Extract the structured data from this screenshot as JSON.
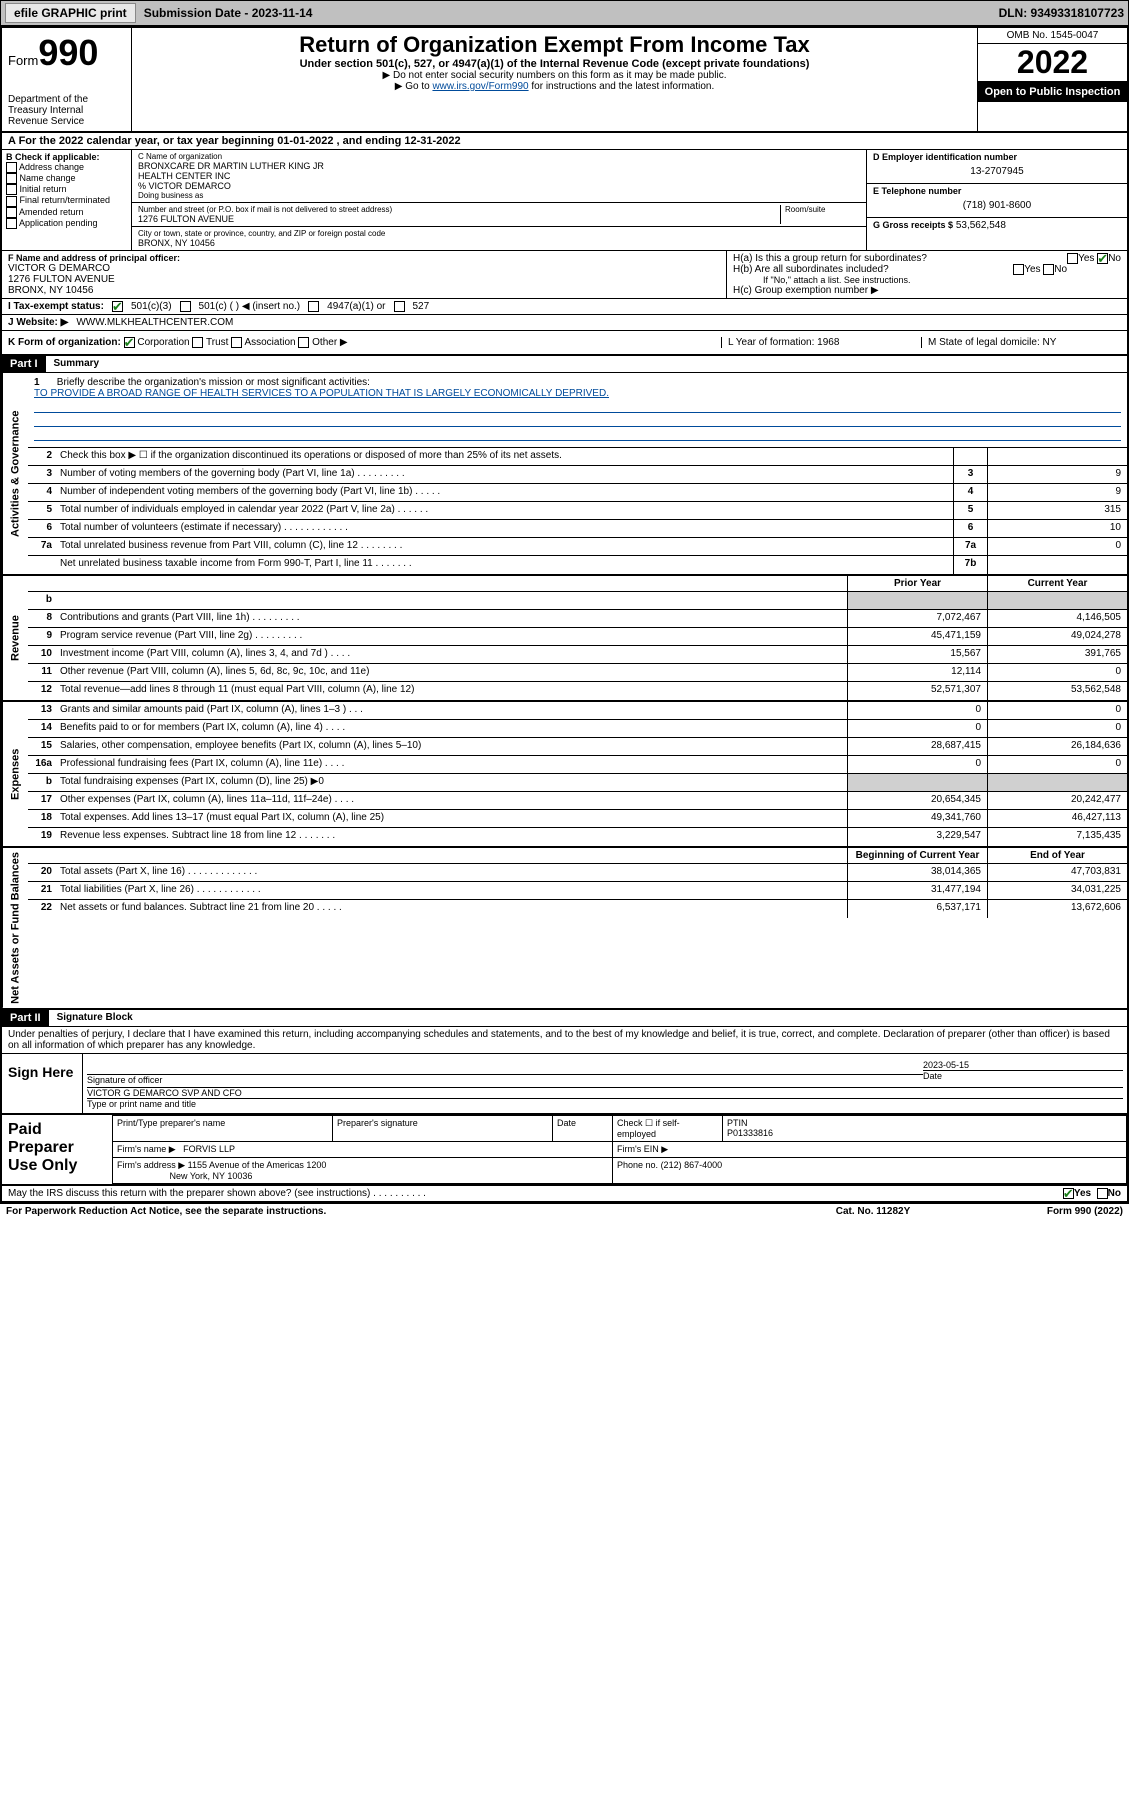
{
  "colors": {
    "topbar_bg": "#c0c0c0",
    "black": "#000000",
    "link": "#004b9b",
    "check_green": "#1a7f1a",
    "grey_fill": "#d0d0d0"
  },
  "topbar": {
    "efile": "efile GRAPHIC print",
    "submission": "Submission Date - 2023-11-14",
    "dln": "DLN: 93493318107723"
  },
  "header": {
    "form_prefix": "Form",
    "form_number": "990",
    "dept": "Department of the Treasury Internal Revenue Service",
    "title": "Return of Organization Exempt From Income Tax",
    "subtitle": "Under section 501(c), 527, or 4947(a)(1) of the Internal Revenue Code (except private foundations)",
    "note1": "▶ Do not enter social security numbers on this form as it may be made public.",
    "note2_pre": "▶ Go to ",
    "note2_link": "www.irs.gov/Form990",
    "note2_post": " for instructions and the latest information.",
    "omb": "OMB No. 1545-0047",
    "year": "2022",
    "inspect": "Open to Public Inspection"
  },
  "rowA": "A For the 2022 calendar year, or tax year beginning 01-01-2022   , and ending 12-31-2022",
  "colB": {
    "hdr": "B Check if applicable:",
    "opts": [
      "Address change",
      "Name change",
      "Initial return",
      "Final return/terminated",
      "Amended return",
      "Application pending"
    ]
  },
  "colC": {
    "name_lbl": "C Name of organization",
    "name1": "BRONXCARE DR MARTIN LUTHER KING JR",
    "name2": "HEALTH CENTER INC",
    "care": "% VICTOR DEMARCO",
    "dba_lbl": "Doing business as",
    "addr_lbl": "Number and street (or P.O. box if mail is not delivered to street address)",
    "room_lbl": "Room/suite",
    "addr": "1276 FULTON AVENUE",
    "city_lbl": "City or town, state or province, country, and ZIP or foreign postal code",
    "city": "BRONX, NY  10456"
  },
  "colD": {
    "ein_lbl": "D Employer identification number",
    "ein": "13-2707945",
    "tel_lbl": "E Telephone number",
    "tel": "(718) 901-8600",
    "gross_lbl": "G Gross receipts $",
    "gross": "53,562,548"
  },
  "rowF": {
    "lbl": "F Name and address of principal officer:",
    "name": "VICTOR G DEMARCO",
    "addr1": "1276 FULTON AVENUE",
    "addr2": "BRONX, NY  10456",
    "ha": "H(a)  Is this a group return for subordinates?",
    "ha_yes": "Yes",
    "ha_no": "No",
    "hb": "H(b)  Are all subordinates included?",
    "hb_yes": "Yes",
    "hb_no": "No",
    "hb_note": "If \"No,\" attach a list. See instructions.",
    "hc": "H(c)  Group exemption number ▶"
  },
  "rowI": {
    "lbl": "I   Tax-exempt status:",
    "o1": "501(c)(3)",
    "o2": "501(c) (  ) ◀ (insert no.)",
    "o3": "4947(a)(1) or",
    "o4": "527"
  },
  "rowJ": {
    "lbl": "J   Website: ▶",
    "val": "WWW.MLKHEALTHCENTER.COM"
  },
  "rowK": {
    "lbl": "K Form of organization:",
    "o1": "Corporation",
    "o2": "Trust",
    "o3": "Association",
    "o4": "Other ▶",
    "L": "L Year of formation: 1968",
    "M": "M State of legal domicile: NY"
  },
  "part1": {
    "hdr": "Part I",
    "title": "Summary",
    "sections": [
      {
        "side": "Activities & Governance",
        "type": "single",
        "intro": {
          "num": "1",
          "desc": "Briefly describe the organization's mission or most significant activities:",
          "mission": "TO PROVIDE A BROAD RANGE OF HEALTH SERVICES TO A POPULATION THAT IS LARGELY ECONOMICALLY DEPRIVED."
        },
        "lines": [
          {
            "num": "2",
            "desc": "Check this box ▶ ☐  if the organization discontinued its operations or disposed of more than 25% of its net assets.",
            "box": "",
            "val": ""
          },
          {
            "num": "3",
            "desc": "Number of voting members of the governing body (Part VI, line 1a)   .    .    .    .    .    .    .    .    .",
            "box": "3",
            "val": "9"
          },
          {
            "num": "4",
            "desc": "Number of independent voting members of the governing body (Part VI, line 1b)   .    .    .    .    .",
            "box": "4",
            "val": "9"
          },
          {
            "num": "5",
            "desc": "Total number of individuals employed in calendar year 2022 (Part V, line 2a)   .    .    .    .    .    .",
            "box": "5",
            "val": "315"
          },
          {
            "num": "6",
            "desc": "Total number of volunteers (estimate if necessary)   .    .    .    .    .    .    .    .    .    .    .    .",
            "box": "6",
            "val": "10"
          },
          {
            "num": "7a",
            "desc": "Total unrelated business revenue from Part VIII, column (C), line 12   .    .    .    .    .    .    .    .",
            "box": "7a",
            "val": "0"
          },
          {
            "num": "",
            "desc": "Net unrelated business taxable income from Form 990-T, Part I, line 11   .    .    .    .    .    .    .",
            "box": "7b",
            "val": ""
          }
        ]
      },
      {
        "side": "Revenue",
        "type": "double",
        "col_hdr1": "Prior Year",
        "col_hdr2": "Current Year",
        "lines": [
          {
            "num": "b",
            "desc": "",
            "v1": "",
            "v2": "",
            "grey": true,
            "noborder": true
          },
          {
            "num": "8",
            "desc": "Contributions and grants (Part VIII, line 1h)   .    .    .    .    .    .    .    .    .",
            "v1": "7,072,467",
            "v2": "4,146,505"
          },
          {
            "num": "9",
            "desc": "Program service revenue (Part VIII, line 2g)   .    .    .    .    .    .    .    .    .",
            "v1": "45,471,159",
            "v2": "49,024,278"
          },
          {
            "num": "10",
            "desc": "Investment income (Part VIII, column (A), lines 3, 4, and 7d )   .    .    .    .",
            "v1": "15,567",
            "v2": "391,765"
          },
          {
            "num": "11",
            "desc": "Other revenue (Part VIII, column (A), lines 5, 6d, 8c, 9c, 10c, and 11e)",
            "v1": "12,114",
            "v2": "0"
          },
          {
            "num": "12",
            "desc": "Total revenue—add lines 8 through 11 (must equal Part VIII, column (A), line 12)",
            "v1": "52,571,307",
            "v2": "53,562,548"
          }
        ]
      },
      {
        "side": "Expenses",
        "type": "double",
        "lines": [
          {
            "num": "13",
            "desc": "Grants and similar amounts paid (Part IX, column (A), lines 1–3 )   .    .    .",
            "v1": "0",
            "v2": "0"
          },
          {
            "num": "14",
            "desc": "Benefits paid to or for members (Part IX, column (A), line 4)   .    .    .    .",
            "v1": "0",
            "v2": "0"
          },
          {
            "num": "15",
            "desc": "Salaries, other compensation, employee benefits (Part IX, column (A), lines 5–10)",
            "v1": "28,687,415",
            "v2": "26,184,636"
          },
          {
            "num": "16a",
            "desc": "Professional fundraising fees (Part IX, column (A), line 11e)   .    .    .    .",
            "v1": "0",
            "v2": "0"
          },
          {
            "num": "b",
            "desc": "Total fundraising expenses (Part IX, column (D), line 25) ▶0",
            "v1": "",
            "v2": "",
            "grey": true
          },
          {
            "num": "17",
            "desc": "Other expenses (Part IX, column (A), lines 11a–11d, 11f–24e)   .    .    .    .",
            "v1": "20,654,345",
            "v2": "20,242,477"
          },
          {
            "num": "18",
            "desc": "Total expenses. Add lines 13–17 (must equal Part IX, column (A), line 25)",
            "v1": "49,341,760",
            "v2": "46,427,113"
          },
          {
            "num": "19",
            "desc": "Revenue less expenses. Subtract line 18 from line 12   .    .    .    .    .    .    .",
            "v1": "3,229,547",
            "v2": "7,135,435"
          }
        ]
      },
      {
        "side": "Net Assets or Fund Balances",
        "type": "double",
        "col_hdr1": "Beginning of Current Year",
        "col_hdr2": "End of Year",
        "lines": [
          {
            "num": "20",
            "desc": "Total assets (Part X, line 16)   .    .    .    .    .    .    .    .    .    .    .    .    .",
            "v1": "38,014,365",
            "v2": "47,703,831"
          },
          {
            "num": "21",
            "desc": "Total liabilities (Part X, line 26)   .    .    .    .    .    .    .    .    .    .    .    .",
            "v1": "31,477,194",
            "v2": "34,031,225"
          },
          {
            "num": "22",
            "desc": "Net assets or fund balances. Subtract line 21 from line 20   .    .    .    .    .",
            "v1": "6,537,171",
            "v2": "13,672,606"
          }
        ]
      }
    ]
  },
  "part2": {
    "hdr": "Part II",
    "title": "Signature Block",
    "decl": "Under penalties of perjury, I declare that I have examined this return, including accompanying schedules and statements, and to the best of my knowledge and belief, it is true, correct, and complete. Declaration of preparer (other than officer) is based on all information of which preparer has any knowledge.",
    "sign_here": "Sign Here",
    "sig_officer_lbl": "Signature of officer",
    "sig_date_lbl": "Date",
    "sig_date": "2023-05-15",
    "sig_name": "VICTOR G DEMARCO  SVP AND CFO",
    "sig_name_lbl": "Type or print name and title",
    "paid": "Paid Preparer Use Only",
    "prep_name_lbl": "Print/Type preparer's name",
    "prep_sig_lbl": "Preparer's signature",
    "date_lbl": "Date",
    "check_lbl": "Check ☐ if self-employed",
    "ptin_lbl": "PTIN",
    "ptin": "P01333816",
    "firm_name_lbl": "Firm's name    ▶",
    "firm_name": "FORVIS LLP",
    "firm_ein_lbl": "Firm's EIN ▶",
    "firm_addr_lbl": "Firm's address ▶",
    "firm_addr1": "1155 Avenue of the Americas 1200",
    "firm_addr2": "New York, NY  10036",
    "phone_lbl": "Phone no.",
    "phone": "(212) 867-4000",
    "discuss": "May the IRS discuss this return with the preparer shown above? (see instructions)   .    .    .    .    .    .    .    .    .    .",
    "discuss_yes": "Yes",
    "discuss_no": "No"
  },
  "footer": {
    "left": "For Paperwork Reduction Act Notice, see the separate instructions.",
    "mid": "Cat. No. 11282Y",
    "right": "Form 990 (2022)"
  }
}
